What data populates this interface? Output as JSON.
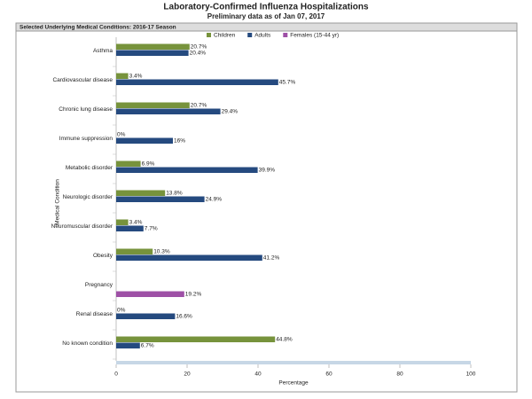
{
  "chart_data": {
    "type": "bar",
    "orientation": "horizontal",
    "title": "Laboratory-Confirmed Influenza Hospitalizations",
    "subtitle": "Preliminary data as of Jan 07, 2017",
    "panel_title": "Selected Underlying Medical Conditions: 2016-17 Season",
    "x_label": "Percentage",
    "y_label": "Medical Condition",
    "categories": [
      "Asthma",
      "Cardiovascular disease",
      "Chronic lung disease",
      "Immune suppression",
      "Metabolic disorder",
      "Neurologic disorder",
      "Neuromuscular disorder",
      "Obesity",
      "Pregnancy",
      "Renal disease",
      "No known condition"
    ],
    "series": [
      {
        "name": "Children",
        "color": "#77933c",
        "values": [
          20.7,
          3.4,
          20.7,
          0,
          6.9,
          13.8,
          3.4,
          10.3,
          null,
          0,
          44.8
        ],
        "value_labels": [
          "20.7%",
          "3.4%",
          "20.7%",
          "0%",
          "6.9%",
          "13.8%",
          "3.4%",
          "10.3%",
          null,
          "0%",
          "44.8%"
        ]
      },
      {
        "name": "Adults",
        "color": "#254a7f",
        "values": [
          20.4,
          45.7,
          29.4,
          16,
          39.9,
          24.9,
          7.7,
          41.2,
          null,
          16.6,
          6.7
        ],
        "value_labels": [
          "20.4%",
          "45.7%",
          "29.4%",
          "16%",
          "39.9%",
          "24.9%",
          "7.7%",
          "41.2%",
          null,
          "16.6%",
          "6.7%"
        ]
      },
      {
        "name": "Females (15-44 yr)",
        "color": "#9e50a6",
        "values": [
          null,
          null,
          null,
          null,
          null,
          null,
          null,
          null,
          19.2,
          null,
          null
        ],
        "value_labels": [
          null,
          null,
          null,
          null,
          null,
          null,
          null,
          null,
          "19.2%",
          null,
          null
        ]
      }
    ],
    "xlim": [
      0,
      100
    ],
    "xticks": [
      0,
      20,
      40,
      60,
      80,
      100
    ]
  }
}
